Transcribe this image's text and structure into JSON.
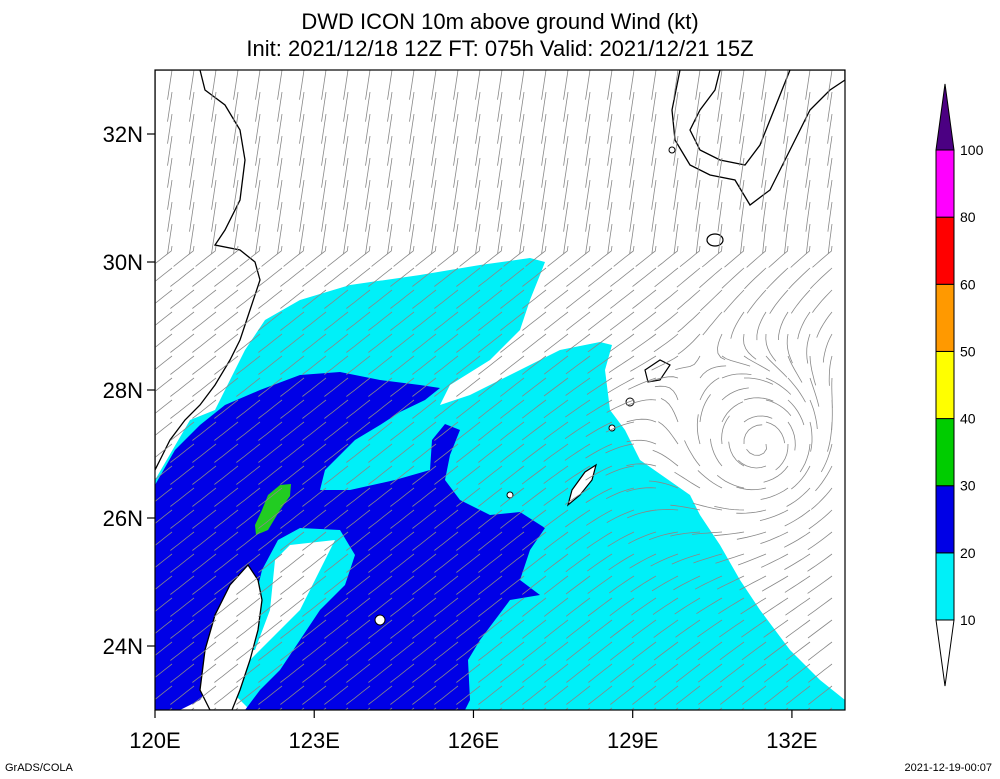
{
  "title": {
    "line1": "DWD ICON 10m above ground Wind (kt)",
    "line2": "Init: 2021/12/18 12Z  FT: 075h  Valid: 2021/12/21 15Z"
  },
  "axes": {
    "lat_ticks": [
      {
        "value": 32,
        "label": "32N"
      },
      {
        "value": 30,
        "label": "30N"
      },
      {
        "value": 28,
        "label": "28N"
      },
      {
        "value": 26,
        "label": "26N"
      },
      {
        "value": 24,
        "label": "24N"
      }
    ],
    "lon_ticks": [
      {
        "value": 120,
        "label": "120E"
      },
      {
        "value": 123,
        "label": "123E"
      },
      {
        "value": 126,
        "label": "126E"
      },
      {
        "value": 129,
        "label": "129E"
      },
      {
        "value": 132,
        "label": "132E"
      }
    ],
    "lon_range": [
      120,
      133
    ],
    "lat_range": [
      23,
      33
    ]
  },
  "colorbar": {
    "bins": [
      {
        "label": "10",
        "color": "#00f0f8"
      },
      {
        "label": "20",
        "color": "#0000e6"
      },
      {
        "label": "30",
        "color": "#00cc00"
      },
      {
        "label": "40",
        "color": "#ffff00"
      },
      {
        "label": "50",
        "color": "#ff9900"
      },
      {
        "label": "60",
        "color": "#ff0000"
      },
      {
        "label": "80",
        "color": "#ff00ff"
      },
      {
        "label": "100",
        "color": "#4b0082"
      }
    ]
  },
  "colors": {
    "shade_10_20": "#00f0f8",
    "shade_20_30": "#0000e6",
    "shade_30_40": "#22cc22",
    "streamline": "#888888",
    "coast": "#000000"
  },
  "footer": {
    "left": "GrADS/COLA",
    "right": "2021-12-19-00:07"
  }
}
